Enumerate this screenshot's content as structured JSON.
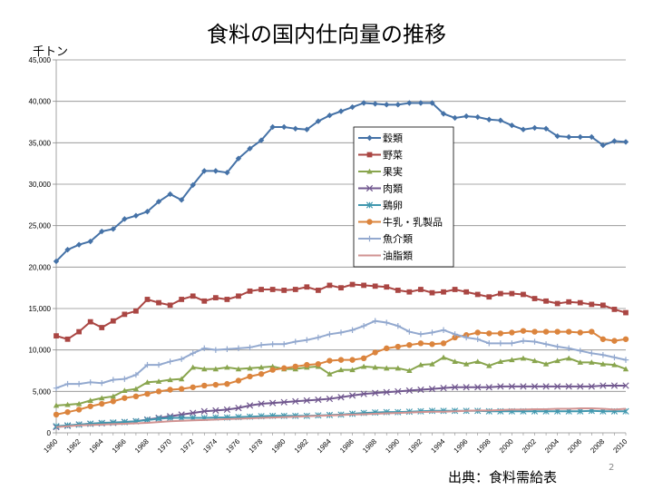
{
  "title": "食料の国内仕向量の推移",
  "unit_label": "千トン",
  "source": "出典：食料需給表",
  "page_number": "2",
  "chart_data": {
    "type": "line",
    "title": "食料の国内仕向量の推移",
    "ylabel": "千トン",
    "xlabel": "",
    "ylim": [
      0,
      45000
    ],
    "y_ticks": [
      "0",
      "5,000",
      "10,000",
      "15,000",
      "20,000",
      "25,000",
      "30,000",
      "35,000",
      "40,000",
      "45,000"
    ],
    "x_tick_labels": [
      "1960",
      "1962",
      "1964",
      "1966",
      "1968",
      "1970",
      "1972",
      "1974",
      "1976",
      "1978",
      "1980",
      "1982",
      "1984",
      "1986",
      "1988",
      "1990",
      "1992",
      "1994",
      "1996",
      "1998",
      "2000",
      "2002",
      "2004",
      "2006",
      "2008",
      "2010"
    ],
    "grid": "horizontal",
    "legend_position": "center",
    "x": [
      1960,
      1961,
      1962,
      1963,
      1964,
      1965,
      1966,
      1967,
      1968,
      1969,
      1970,
      1971,
      1972,
      1973,
      1974,
      1975,
      1976,
      1977,
      1978,
      1979,
      1980,
      1981,
      1982,
      1983,
      1984,
      1985,
      1986,
      1987,
      1988,
      1989,
      1990,
      1991,
      1992,
      1993,
      1994,
      1995,
      1996,
      1997,
      1998,
      1999,
      2000,
      2001,
      2002,
      2003,
      2004,
      2005,
      2006,
      2007,
      2008,
      2009,
      2010
    ],
    "series": [
      {
        "name": "穀類",
        "color": "#4572a7",
        "marker": "diamond",
        "values": [
          20700,
          22100,
          22700,
          23100,
          24300,
          24600,
          25800,
          26200,
          26700,
          27900,
          28800,
          28100,
          29900,
          31600,
          31600,
          31400,
          33100,
          34300,
          35300,
          36900,
          36900,
          36700,
          36600,
          37600,
          38300,
          38800,
          39300,
          39800,
          39700,
          39600,
          39600,
          39800,
          39800,
          39800,
          38500,
          38000,
          38200,
          38100,
          37800,
          37700,
          37100,
          36600,
          36800,
          36700,
          35800,
          35700,
          35700,
          35700,
          34700,
          35200,
          35100
        ]
      },
      {
        "name": "野菜",
        "color": "#aa4643",
        "marker": "square",
        "values": [
          11700,
          11300,
          12200,
          13400,
          12700,
          13500,
          14300,
          14700,
          16100,
          15700,
          15400,
          16100,
          16500,
          15900,
          16300,
          16100,
          16500,
          17100,
          17300,
          17300,
          17200,
          17300,
          17600,
          17200,
          17800,
          17500,
          17900,
          17800,
          17700,
          17600,
          17200,
          17000,
          17300,
          16900,
          17000,
          17300,
          17000,
          16700,
          16400,
          16800,
          16800,
          16700,
          16200,
          15900,
          15600,
          15800,
          15700,
          15500,
          15400,
          14900,
          14500
        ]
      },
      {
        "name": "果実",
        "color": "#89a54e",
        "marker": "triangle",
        "values": [
          3300,
          3400,
          3500,
          3900,
          4200,
          4400,
          5100,
          5300,
          6100,
          6200,
          6400,
          6500,
          7900,
          7700,
          7700,
          7900,
          7700,
          7800,
          7900,
          8000,
          7700,
          7700,
          7900,
          8000,
          7100,
          7600,
          7600,
          8000,
          7900,
          7800,
          7800,
          7500,
          8200,
          8300,
          9100,
          8600,
          8300,
          8600,
          8100,
          8600,
          8800,
          9000,
          8700,
          8300,
          8700,
          9000,
          8500,
          8500,
          8300,
          8200,
          7700
        ]
      },
      {
        "name": "肉類",
        "color": "#71588f",
        "marker": "x",
        "values": [
          700,
          850,
          1000,
          1100,
          1150,
          1200,
          1300,
          1400,
          1600,
          1800,
          2000,
          2200,
          2400,
          2600,
          2700,
          2800,
          3000,
          3300,
          3500,
          3600,
          3700,
          3800,
          3900,
          4000,
          4100,
          4300,
          4500,
          4700,
          4800,
          4900,
          5000,
          5100,
          5200,
          5300,
          5400,
          5500,
          5500,
          5500,
          5500,
          5600,
          5600,
          5600,
          5600,
          5600,
          5600,
          5600,
          5600,
          5600,
          5700,
          5700,
          5700
        ]
      },
      {
        "name": "鶏卵",
        "color": "#4198af",
        "marker": "star",
        "values": [
          800,
          900,
          1000,
          1100,
          1200,
          1250,
          1300,
          1400,
          1550,
          1700,
          1800,
          1800,
          1800,
          1800,
          1850,
          1850,
          1900,
          1950,
          2000,
          2050,
          2050,
          2050,
          2050,
          2100,
          2150,
          2200,
          2300,
          2400,
          2450,
          2500,
          2500,
          2550,
          2600,
          2650,
          2650,
          2650,
          2650,
          2650,
          2600,
          2600,
          2600,
          2600,
          2600,
          2600,
          2600,
          2600,
          2600,
          2650,
          2600,
          2600,
          2600
        ]
      },
      {
        "name": "牛乳・乳製品",
        "color": "#db843d",
        "marker": "circle",
        "values": [
          2200,
          2500,
          2800,
          3200,
          3500,
          3800,
          4200,
          4400,
          4700,
          5000,
          5200,
          5300,
          5500,
          5700,
          5800,
          5900,
          6300,
          6800,
          7100,
          7600,
          7800,
          8000,
          8200,
          8300,
          8700,
          8800,
          8800,
          9000,
          9700,
          10200,
          10400,
          10600,
          10800,
          10700,
          10800,
          11500,
          11800,
          12100,
          12000,
          12000,
          12100,
          12300,
          12200,
          12200,
          12200,
          12200,
          12100,
          12200,
          11300,
          11100,
          11300
        ]
      },
      {
        "name": "魚介類",
        "color": "#93a9cf",
        "marker": "plus",
        "values": [
          5400,
          5900,
          5900,
          6100,
          6000,
          6400,
          6500,
          7000,
          8200,
          8200,
          8600,
          8900,
          9600,
          10200,
          10000,
          10100,
          10200,
          10300,
          10600,
          10700,
          10700,
          11000,
          11200,
          11500,
          11900,
          12100,
          12400,
          12900,
          13500,
          13300,
          12900,
          12200,
          11900,
          12100,
          12400,
          11900,
          11500,
          11300,
          10800,
          10800,
          10800,
          11100,
          11000,
          10700,
          10400,
          10200,
          9900,
          9600,
          9400,
          9100,
          8800
        ]
      },
      {
        "name": "油脂類",
        "color": "#d19392",
        "marker": "none",
        "values": [
          700,
          800,
          900,
          950,
          1000,
          1050,
          1100,
          1150,
          1200,
          1300,
          1400,
          1450,
          1500,
          1550,
          1600,
          1650,
          1700,
          1750,
          1800,
          1850,
          1900,
          1950,
          2000,
          2050,
          2100,
          2150,
          2200,
          2250,
          2300,
          2350,
          2400,
          2450,
          2500,
          2550,
          2550,
          2600,
          2650,
          2700,
          2700,
          2750,
          2800,
          2800,
          2850,
          2850,
          2900,
          2900,
          2950,
          2950,
          2900,
          2800,
          2900
        ]
      }
    ]
  }
}
